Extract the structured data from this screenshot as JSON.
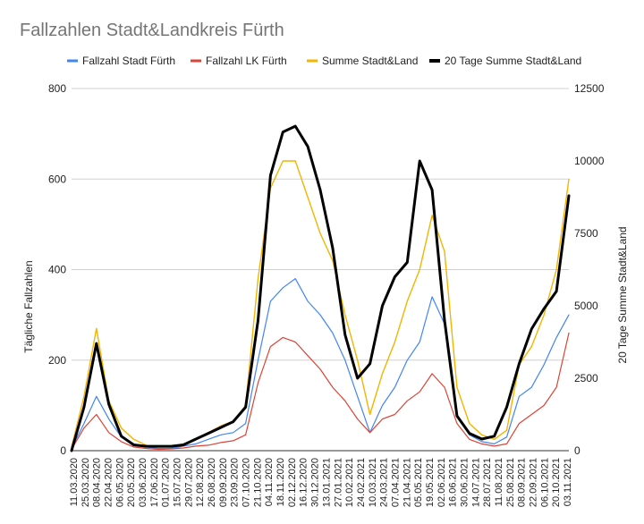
{
  "chart_data": {
    "type": "line",
    "title": "Fallzahlen Stadt&Landkreis Fürth",
    "ylabel_left": "Tägliche Fallzahlen",
    "ylabel_right": "20 Tage Summe Stadt&Land",
    "left_axis": {
      "min": 0,
      "max": 800,
      "ticks": [
        "0",
        "200",
        "400",
        "600",
        "800"
      ]
    },
    "right_axis": {
      "min": 0,
      "max": 12500,
      "ticks": [
        "0",
        "2500",
        "5000",
        "7500",
        "10000",
        "12500"
      ]
    },
    "grid": true,
    "legend_position": "top",
    "x_tick_labels": [
      "11.03.2020",
      "25.03.2020",
      "08.04.2020",
      "22.04.2020",
      "06.05.2020",
      "20.05.2020",
      "03.06.2020",
      "17.06.2020",
      "01.07.2020",
      "15.07.2020",
      "29.07.2020",
      "12.08.2020",
      "26.08.2020",
      "09.09.2020",
      "23.09.2020",
      "07.10.2020",
      "21.10.2020",
      "04.11.2020",
      "18.11.2020",
      "02.12.2020",
      "16.12.2020",
      "30.12.2020",
      "13.01.2021",
      "27.01.2021",
      "10.02.2021",
      "24.02.2021",
      "10.03.2021",
      "24.03.2021",
      "07.04.2021",
      "21.04.2021",
      "05.05.2021",
      "19.05.2021",
      "02.06.2021",
      "16.06.2021",
      "30.06.2021",
      "14.07.2021",
      "28.07.2021",
      "11.08.2021",
      "25.08.2021",
      "08.09.2021",
      "22.09.2021",
      "06.10.2021",
      "20.10.2021",
      "03.11.2021"
    ],
    "x_index_note_points": [
      0,
      3,
      7,
      10,
      13,
      17,
      21,
      25,
      29,
      33,
      37,
      41,
      43
    ],
    "series": [
      {
        "name": "Fallzahl Stadt Fürth",
        "color": "#4285f4",
        "axis": "left",
        "width": 1.2,
        "values": [
          5,
          60,
          120,
          70,
          30,
          15,
          8,
          5,
          5,
          10,
          15,
          25,
          35,
          40,
          60,
          200,
          330,
          360,
          380,
          330,
          300,
          260,
          200,
          120,
          40,
          100,
          140,
          200,
          240,
          340,
          280,
          80,
          35,
          20,
          15,
          30,
          120,
          140,
          190,
          250,
          300
        ]
      },
      {
        "name": "Fallzahl LK Fürth",
        "color": "#db4437",
        "axis": "left",
        "width": 1.2,
        "values": [
          3,
          50,
          80,
          40,
          20,
          8,
          5,
          3,
          4,
          6,
          10,
          12,
          18,
          22,
          35,
          150,
          230,
          250,
          240,
          210,
          180,
          140,
          110,
          70,
          40,
          70,
          80,
          110,
          130,
          170,
          140,
          60,
          25,
          15,
          10,
          15,
          60,
          80,
          100,
          140,
          260
        ]
      },
      {
        "name": "Summe Stadt&Land",
        "color": "#f4b400",
        "axis": "left",
        "width": 1.4,
        "values": [
          8,
          120,
          270,
          110,
          50,
          25,
          12,
          8,
          9,
          15,
          25,
          40,
          55,
          65,
          100,
          380,
          580,
          640,
          640,
          560,
          480,
          420,
          300,
          200,
          80,
          170,
          240,
          330,
          400,
          520,
          440,
          140,
          60,
          35,
          25,
          45,
          190,
          230,
          300,
          400,
          600
        ]
      },
      {
        "name": "20 Tage Summe Stadt&Land",
        "color": "#000000",
        "axis": "right",
        "width": 3,
        "values": [
          0,
          1500,
          3700,
          1600,
          500,
          200,
          150,
          150,
          150,
          200,
          400,
          600,
          800,
          1000,
          1500,
          4500,
          9500,
          11000,
          11200,
          10500,
          9000,
          7000,
          4000,
          2500,
          3000,
          5000,
          6000,
          6500,
          10000,
          9000,
          4500,
          1200,
          600,
          400,
          500,
          1500,
          3000,
          4200,
          4900,
          5500,
          8800
        ]
      }
    ]
  }
}
